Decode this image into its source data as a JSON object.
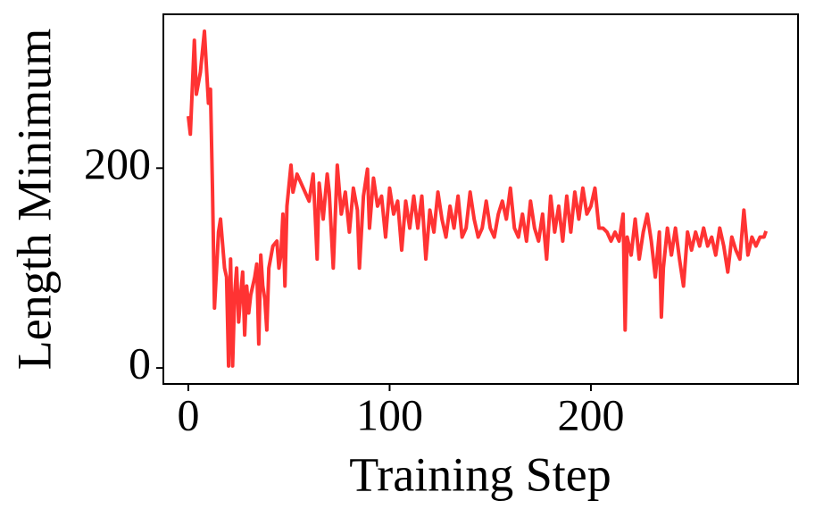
{
  "chart_data": {
    "type": "line",
    "x_label": "Training Step",
    "y_label": "Length Minimum",
    "xlim": [
      -12.4,
      302.9
    ],
    "ylim": [
      -16,
      354
    ],
    "xticks": [
      0,
      100,
      200
    ],
    "yticks": [
      0,
      200
    ],
    "grid": false,
    "series": [
      {
        "name": null,
        "color": "#ff3333",
        "x": [
          0,
          1,
          3,
          4,
          6,
          8,
          10,
          11,
          12,
          13,
          15,
          16,
          18,
          19,
          20,
          21,
          22,
          23,
          24,
          25,
          26,
          27,
          28,
          29,
          30,
          31,
          33,
          34,
          35,
          36,
          37,
          38,
          39,
          40,
          42,
          44,
          45,
          46,
          47,
          48,
          49,
          51,
          52,
          54,
          56,
          58,
          60,
          62,
          63,
          64,
          65,
          67,
          69,
          70,
          72,
          74,
          76,
          78,
          80,
          82,
          84,
          85,
          87,
          89,
          90,
          92,
          94,
          96,
          98,
          100,
          102,
          104,
          106,
          108,
          110,
          112,
          114,
          116,
          118,
          120,
          122,
          124,
          126,
          128,
          130,
          132,
          134,
          136,
          138,
          140,
          142,
          144,
          146,
          148,
          150,
          152,
          154,
          156,
          158,
          160,
          162,
          164,
          166,
          168,
          170,
          172,
          174,
          176,
          178,
          180,
          182,
          184,
          186,
          188,
          190,
          192,
          194,
          196,
          198,
          200,
          202,
          204,
          206,
          208,
          210,
          212,
          214,
          216,
          217,
          218,
          220,
          222,
          224,
          226,
          228,
          230,
          232,
          234,
          235,
          236,
          238,
          240,
          242,
          244,
          246,
          248,
          250,
          252,
          254,
          256,
          258,
          260,
          262,
          264,
          266,
          268,
          270,
          272,
          274,
          276,
          278,
          280,
          282,
          284,
          286,
          287
        ],
        "values": [
          252,
          234,
          328,
          274,
          296,
          337,
          265,
          279,
          180,
          60,
          136,
          149,
          100,
          91,
          2,
          109,
          2,
          73,
          100,
          46,
          73,
          96,
          33,
          82,
          55,
          73,
          91,
          104,
          24,
          113,
          82,
          69,
          38,
          100,
          122,
          127,
          100,
          113,
          154,
          82,
          162,
          203,
          176,
          194,
          185,
          176,
          167,
          194,
          154,
          109,
          185,
          149,
          194,
          176,
          100,
          203,
          154,
          176,
          136,
          180,
          158,
          100,
          172,
          199,
          140,
          190,
          162,
          172,
          131,
          180,
          154,
          167,
          118,
          167,
          140,
          172,
          140,
          172,
          109,
          158,
          136,
          176,
          149,
          131,
          162,
          140,
          172,
          131,
          140,
          176,
          149,
          131,
          140,
          167,
          140,
          131,
          154,
          167,
          149,
          180,
          140,
          131,
          154,
          127,
          167,
          140,
          127,
          154,
          109,
          172,
          136,
          162,
          127,
          172,
          136,
          176,
          149,
          180,
          154,
          162,
          180,
          140,
          140,
          136,
          127,
          136,
          127,
          154,
          38,
          131,
          113,
          149,
          109,
          136,
          154,
          127,
          91,
          136,
          51,
          100,
          140,
          113,
          140,
          109,
          82,
          136,
          118,
          136,
          122,
          140,
          122,
          131,
          113,
          140,
          122,
          96,
          131,
          118,
          109,
          158,
          113,
          131,
          122,
          131,
          131,
          137
        ]
      }
    ]
  }
}
